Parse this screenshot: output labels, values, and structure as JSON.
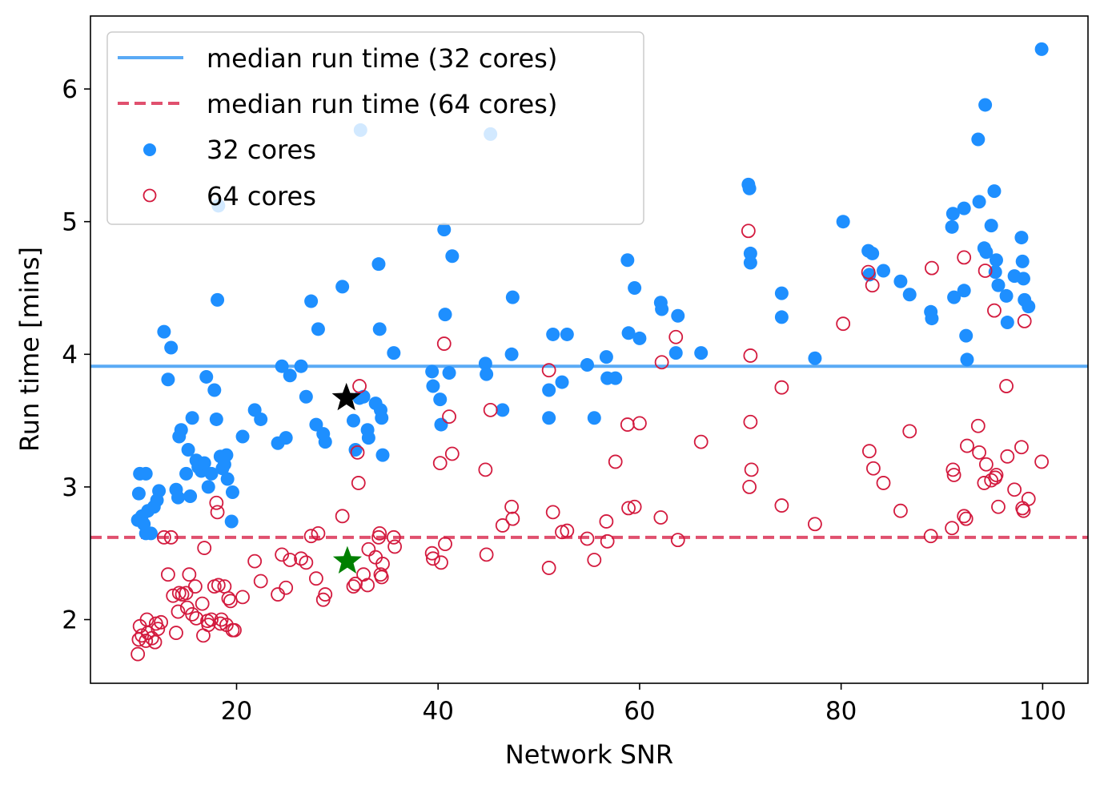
{
  "chart_data": {
    "type": "scatter",
    "xlabel": "Network SNR",
    "ylabel": "Run time [mins]",
    "xlim": [
      5.5,
      104.5
    ],
    "ylim": [
      1.52,
      6.55
    ],
    "xticks": [
      20,
      40,
      60,
      80,
      100
    ],
    "yticks": [
      2,
      3,
      4,
      5,
      6
    ],
    "grid": false,
    "legend_position": "top-left",
    "reference_lines": [
      {
        "name": "median run time (32 cores)",
        "y": 3.91,
        "color": "#5aaaf5",
        "style": "solid"
      },
      {
        "name": "median run time (64 cores)",
        "y": 2.62,
        "color": "#e0506e",
        "style": "dashed"
      }
    ],
    "series": [
      {
        "name": "32 cores",
        "color": "#1e8fff",
        "marker": "filled-circle",
        "points": [
          [
            10.2,
            2.75
          ],
          [
            10.3,
            2.95
          ],
          [
            10.4,
            3.1
          ],
          [
            10.6,
            2.78
          ],
          [
            10.8,
            2.72
          ],
          [
            11.0,
            3.1
          ],
          [
            11.0,
            2.65
          ],
          [
            11.2,
            2.82
          ],
          [
            11.5,
            2.65
          ],
          [
            11.8,
            2.85
          ],
          [
            12.1,
            2.9
          ],
          [
            12.3,
            2.97
          ],
          [
            12.8,
            4.17
          ],
          [
            13.2,
            3.81
          ],
          [
            13.5,
            4.05
          ],
          [
            14.0,
            2.98
          ],
          [
            14.2,
            2.92
          ],
          [
            14.3,
            3.38
          ],
          [
            14.5,
            3.43
          ],
          [
            15.0,
            3.1
          ],
          [
            15.2,
            3.28
          ],
          [
            15.4,
            2.93
          ],
          [
            15.6,
            3.52
          ],
          [
            16.0,
            3.2
          ],
          [
            16.2,
            3.15
          ],
          [
            16.5,
            3.12
          ],
          [
            16.8,
            3.18
          ],
          [
            17.0,
            3.83
          ],
          [
            17.2,
            3.0
          ],
          [
            17.5,
            3.1
          ],
          [
            17.8,
            3.73
          ],
          [
            18.0,
            3.51
          ],
          [
            18.1,
            4.41
          ],
          [
            18.2,
            5.12
          ],
          [
            18.4,
            3.23
          ],
          [
            18.6,
            3.14
          ],
          [
            18.8,
            3.17
          ],
          [
            19.0,
            3.24
          ],
          [
            19.1,
            3.06
          ],
          [
            19.5,
            2.74
          ],
          [
            19.6,
            2.96
          ],
          [
            20.6,
            3.38
          ],
          [
            21.8,
            3.58
          ],
          [
            22.4,
            3.51
          ],
          [
            24.1,
            3.33
          ],
          [
            24.5,
            3.91
          ],
          [
            24.9,
            3.37
          ],
          [
            25.3,
            3.84
          ],
          [
            26.4,
            3.91
          ],
          [
            26.9,
            3.68
          ],
          [
            27.4,
            4.4
          ],
          [
            27.9,
            3.47
          ],
          [
            28.1,
            4.19
          ],
          [
            28.6,
            3.4
          ],
          [
            28.8,
            3.34
          ],
          [
            30.5,
            4.51
          ],
          [
            31.6,
            3.5
          ],
          [
            31.8,
            3.28
          ],
          [
            32.2,
            3.67
          ],
          [
            32.3,
            5.69
          ],
          [
            32.6,
            3.68
          ],
          [
            33.0,
            3.43
          ],
          [
            33.1,
            3.37
          ],
          [
            33.8,
            3.63
          ],
          [
            34.1,
            4.68
          ],
          [
            34.2,
            4.19
          ],
          [
            34.3,
            3.58
          ],
          [
            34.4,
            3.52
          ],
          [
            34.5,
            3.24
          ],
          [
            35.6,
            4.01
          ],
          [
            39.4,
            3.87
          ],
          [
            39.5,
            3.76
          ],
          [
            40.2,
            3.66
          ],
          [
            40.3,
            3.47
          ],
          [
            40.6,
            4.94
          ],
          [
            40.7,
            4.3
          ],
          [
            41.1,
            3.86
          ],
          [
            41.4,
            4.74
          ],
          [
            44.7,
            3.93
          ],
          [
            44.8,
            3.85
          ],
          [
            45.2,
            5.66
          ],
          [
            46.4,
            3.58
          ],
          [
            47.3,
            4.0
          ],
          [
            47.4,
            4.43
          ],
          [
            51.0,
            3.73
          ],
          [
            51.0,
            3.52
          ],
          [
            51.4,
            4.15
          ],
          [
            52.3,
            3.79
          ],
          [
            52.8,
            4.15
          ],
          [
            54.8,
            3.92
          ],
          [
            55.5,
            3.52
          ],
          [
            56.7,
            3.98
          ],
          [
            56.8,
            3.82
          ],
          [
            57.6,
            3.82
          ],
          [
            58.8,
            4.71
          ],
          [
            58.9,
            4.16
          ],
          [
            59.5,
            4.5
          ],
          [
            60.0,
            4.12
          ],
          [
            62.1,
            4.39
          ],
          [
            62.2,
            4.34
          ],
          [
            63.6,
            4.01
          ],
          [
            63.8,
            4.29
          ],
          [
            66.1,
            4.01
          ],
          [
            70.8,
            5.28
          ],
          [
            70.9,
            5.25
          ],
          [
            71.0,
            4.76
          ],
          [
            71.0,
            4.69
          ],
          [
            74.1,
            4.46
          ],
          [
            74.1,
            4.28
          ],
          [
            77.4,
            3.97
          ],
          [
            80.2,
            5.0
          ],
          [
            82.7,
            4.78
          ],
          [
            82.8,
            4.6
          ],
          [
            83.1,
            4.76
          ],
          [
            84.2,
            4.63
          ],
          [
            85.9,
            4.55
          ],
          [
            86.8,
            4.45
          ],
          [
            88.9,
            4.32
          ],
          [
            89.0,
            4.27
          ],
          [
            91.0,
            4.96
          ],
          [
            91.1,
            5.06
          ],
          [
            91.2,
            4.43
          ],
          [
            92.2,
            4.48
          ],
          [
            92.2,
            5.1
          ],
          [
            92.4,
            4.14
          ],
          [
            92.5,
            3.96
          ],
          [
            93.6,
            5.62
          ],
          [
            93.7,
            5.15
          ],
          [
            94.2,
            4.8
          ],
          [
            94.3,
            5.88
          ],
          [
            94.4,
            4.77
          ],
          [
            94.9,
            4.97
          ],
          [
            95.2,
            5.23
          ],
          [
            95.3,
            4.62
          ],
          [
            95.4,
            4.71
          ],
          [
            95.6,
            4.52
          ],
          [
            96.4,
            4.44
          ],
          [
            96.5,
            4.24
          ],
          [
            97.2,
            4.59
          ],
          [
            97.9,
            4.88
          ],
          [
            98.0,
            4.7
          ],
          [
            98.1,
            4.57
          ],
          [
            98.2,
            4.41
          ],
          [
            98.6,
            4.36
          ],
          [
            99.9,
            6.3
          ]
        ]
      },
      {
        "name": "64 cores",
        "color": "#d31a3e",
        "marker": "open-circle",
        "points": [
          [
            10.2,
            1.74
          ],
          [
            10.3,
            1.85
          ],
          [
            10.4,
            1.95
          ],
          [
            10.6,
            1.88
          ],
          [
            11.0,
            1.84
          ],
          [
            11.1,
            2.0
          ],
          [
            11.2,
            1.9
          ],
          [
            11.6,
            1.86
          ],
          [
            11.9,
            1.83
          ],
          [
            12.0,
            1.97
          ],
          [
            12.2,
            1.93
          ],
          [
            12.5,
            1.98
          ],
          [
            12.8,
            2.62
          ],
          [
            13.2,
            2.34
          ],
          [
            13.5,
            2.62
          ],
          [
            13.7,
            2.18
          ],
          [
            14.0,
            1.9
          ],
          [
            14.2,
            2.06
          ],
          [
            14.3,
            2.2
          ],
          [
            14.6,
            2.19
          ],
          [
            15.0,
            2.2
          ],
          [
            15.1,
            2.09
          ],
          [
            15.3,
            2.34
          ],
          [
            15.6,
            2.04
          ],
          [
            15.9,
            2.25
          ],
          [
            16.0,
            2.01
          ],
          [
            16.6,
            2.12
          ],
          [
            16.7,
            1.88
          ],
          [
            16.8,
            2.54
          ],
          [
            17.1,
            1.99
          ],
          [
            17.2,
            1.96
          ],
          [
            17.5,
            2.0
          ],
          [
            17.8,
            2.25
          ],
          [
            18.0,
            2.88
          ],
          [
            18.1,
            2.81
          ],
          [
            18.2,
            2.26
          ],
          [
            18.4,
            1.97
          ],
          [
            18.5,
            2.0
          ],
          [
            18.8,
            2.25
          ],
          [
            19.0,
            1.96
          ],
          [
            19.2,
            2.16
          ],
          [
            19.4,
            2.14
          ],
          [
            19.6,
            1.92
          ],
          [
            19.8,
            1.92
          ],
          [
            20.6,
            2.17
          ],
          [
            21.8,
            2.44
          ],
          [
            22.4,
            2.29
          ],
          [
            24.1,
            2.19
          ],
          [
            24.5,
            2.49
          ],
          [
            24.9,
            2.24
          ],
          [
            25.3,
            2.45
          ],
          [
            26.4,
            2.46
          ],
          [
            26.9,
            2.43
          ],
          [
            27.4,
            2.63
          ],
          [
            27.9,
            2.31
          ],
          [
            28.1,
            2.65
          ],
          [
            28.6,
            2.15
          ],
          [
            28.8,
            2.19
          ],
          [
            30.5,
            2.78
          ],
          [
            31.6,
            2.25
          ],
          [
            31.8,
            2.27
          ],
          [
            32.2,
            3.76
          ],
          [
            32.0,
            3.26
          ],
          [
            32.1,
            3.03
          ],
          [
            32.6,
            2.34
          ],
          [
            33.0,
            2.26
          ],
          [
            33.1,
            2.53
          ],
          [
            33.8,
            2.47
          ],
          [
            34.1,
            2.62
          ],
          [
            34.2,
            2.65
          ],
          [
            34.3,
            2.34
          ],
          [
            34.4,
            2.32
          ],
          [
            34.5,
            2.42
          ],
          [
            35.6,
            2.62
          ],
          [
            35.7,
            2.55
          ],
          [
            39.4,
            2.5
          ],
          [
            39.5,
            2.46
          ],
          [
            40.2,
            3.18
          ],
          [
            40.3,
            2.43
          ],
          [
            40.6,
            4.08
          ],
          [
            40.7,
            2.57
          ],
          [
            41.1,
            3.53
          ],
          [
            41.4,
            3.25
          ],
          [
            44.7,
            3.13
          ],
          [
            44.8,
            2.49
          ],
          [
            45.2,
            3.58
          ],
          [
            46.4,
            2.71
          ],
          [
            47.3,
            2.85
          ],
          [
            47.4,
            2.76
          ],
          [
            51.0,
            3.88
          ],
          [
            51.0,
            2.39
          ],
          [
            51.4,
            2.81
          ],
          [
            52.3,
            2.66
          ],
          [
            52.8,
            2.67
          ],
          [
            54.8,
            2.61
          ],
          [
            55.5,
            2.45
          ],
          [
            56.7,
            2.74
          ],
          [
            56.8,
            2.59
          ],
          [
            57.6,
            3.19
          ],
          [
            58.8,
            3.47
          ],
          [
            58.9,
            2.84
          ],
          [
            59.5,
            2.85
          ],
          [
            60.0,
            3.48
          ],
          [
            62.1,
            2.77
          ],
          [
            62.2,
            3.94
          ],
          [
            63.6,
            4.13
          ],
          [
            63.8,
            2.6
          ],
          [
            66.1,
            3.34
          ],
          [
            70.8,
            4.93
          ],
          [
            70.9,
            3.0
          ],
          [
            71.0,
            3.99
          ],
          [
            71.0,
            3.49
          ],
          [
            71.1,
            3.13
          ],
          [
            74.1,
            3.75
          ],
          [
            74.1,
            2.86
          ],
          [
            77.4,
            2.72
          ],
          [
            80.2,
            4.23
          ],
          [
            82.7,
            4.62
          ],
          [
            82.8,
            3.27
          ],
          [
            83.1,
            4.52
          ],
          [
            83.2,
            3.14
          ],
          [
            84.2,
            3.03
          ],
          [
            85.9,
            2.82
          ],
          [
            86.8,
            3.42
          ],
          [
            88.9,
            2.63
          ],
          [
            89.0,
            4.65
          ],
          [
            91.0,
            2.69
          ],
          [
            91.1,
            3.13
          ],
          [
            91.2,
            3.09
          ],
          [
            92.2,
            2.78
          ],
          [
            92.2,
            4.73
          ],
          [
            92.4,
            2.76
          ],
          [
            92.5,
            3.31
          ],
          [
            93.6,
            3.46
          ],
          [
            93.7,
            3.26
          ],
          [
            94.2,
            3.03
          ],
          [
            94.3,
            4.63
          ],
          [
            94.4,
            3.17
          ],
          [
            94.9,
            3.05
          ],
          [
            95.2,
            4.33
          ],
          [
            95.3,
            3.07
          ],
          [
            95.4,
            3.09
          ],
          [
            95.6,
            2.85
          ],
          [
            96.4,
            3.76
          ],
          [
            96.5,
            3.23
          ],
          [
            97.2,
            2.98
          ],
          [
            97.9,
            3.3
          ],
          [
            98.0,
            2.84
          ],
          [
            98.1,
            2.82
          ],
          [
            98.2,
            4.25
          ],
          [
            98.6,
            2.91
          ],
          [
            99.9,
            3.19
          ]
        ]
      }
    ],
    "highlight_markers": [
      {
        "marker": "star",
        "color": "#000000",
        "x": 30.9,
        "y": 3.67
      },
      {
        "marker": "star",
        "color": "#008000",
        "x": 31.0,
        "y": 2.44
      }
    ]
  }
}
